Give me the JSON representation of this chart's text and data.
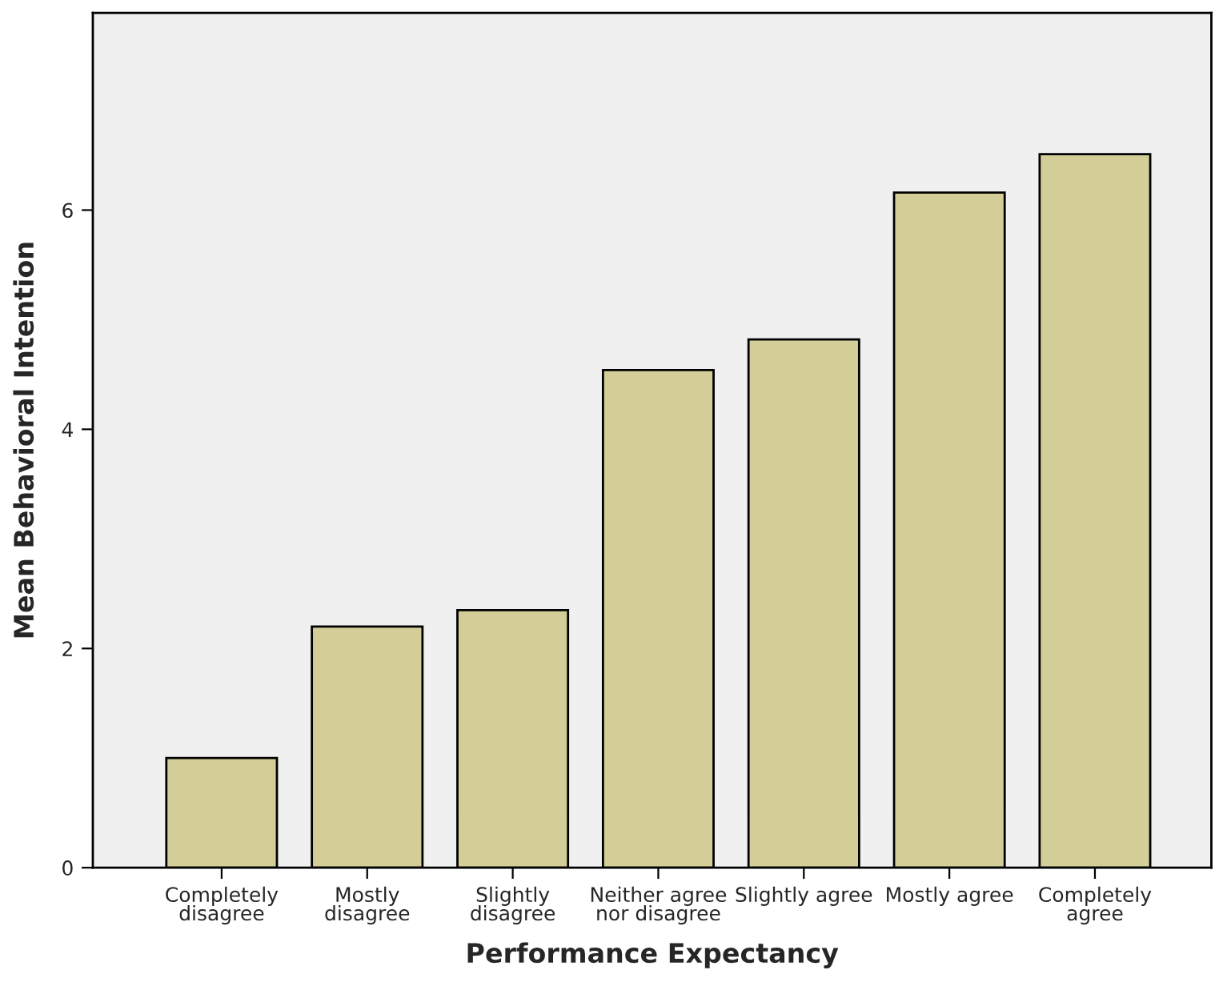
{
  "chart_data": {
    "type": "bar",
    "xlabel": "Performance Expectancy",
    "ylabel": "Mean Behavioral Intention",
    "categories": [
      "Completely\ndisagree",
      "Mostly\ndisagree",
      "Slightly\ndisagree",
      "Neither agree\nnor disagree",
      "Slightly agree",
      "Mostly agree",
      "Completely\nagree"
    ],
    "values": [
      1.0,
      2.2,
      2.35,
      4.54,
      4.82,
      6.16,
      6.51
    ],
    "color": "#d3ce97",
    "ylim": [
      0,
      7.8
    ],
    "yticks": [
      0,
      2,
      4,
      6
    ],
    "grid": false,
    "legend": false
  }
}
